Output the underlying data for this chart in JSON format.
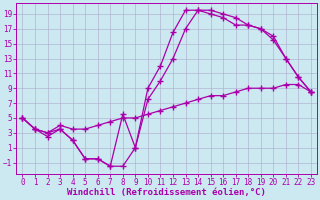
{
  "bg_color": "#cce8f0",
  "grid_color": "#aaaacc",
  "line_color": "#aa00aa",
  "marker": "+",
  "markersize": 4,
  "linewidth": 0.9,
  "xlabel": "Windchill (Refroidissement éolien,°C)",
  "xlabel_fontsize": 6.5,
  "tick_fontsize": 5.5,
  "xlim": [
    -0.5,
    23.5
  ],
  "ylim": [
    -2.5,
    20.5
  ],
  "yticks": [
    -1,
    1,
    3,
    5,
    7,
    9,
    11,
    13,
    15,
    17,
    19
  ],
  "xticks": [
    0,
    1,
    2,
    3,
    4,
    5,
    6,
    7,
    8,
    9,
    10,
    11,
    12,
    13,
    14,
    15,
    16,
    17,
    18,
    19,
    20,
    21,
    22,
    23
  ],
  "line1_x": [
    0,
    1,
    2,
    3,
    4,
    5,
    6,
    7,
    8,
    9,
    10,
    11,
    12,
    13,
    14,
    15,
    16,
    17,
    18,
    19,
    20,
    21,
    22,
    23
  ],
  "line1_y": [
    5,
    3.5,
    2.5,
    3.5,
    2,
    -0.5,
    -0.5,
    -1.5,
    5.5,
    1,
    9,
    12,
    16.5,
    19.5,
    19.5,
    19,
    18.5,
    17.5,
    17.5,
    17,
    16,
    13,
    10.5,
    8.5
  ],
  "line2_x": [
    0,
    1,
    2,
    3,
    4,
    5,
    6,
    7,
    8,
    9,
    10,
    11,
    12,
    13,
    14,
    15,
    16,
    17,
    18,
    19,
    20,
    21,
    22,
    23
  ],
  "line2_y": [
    5,
    3.5,
    3,
    3.5,
    2,
    -0.5,
    -0.5,
    -1.5,
    -1.5,
    1,
    7.5,
    10,
    13,
    17,
    19.5,
    19.5,
    19,
    18.5,
    17.5,
    17,
    15.5,
    13,
    10.5,
    8.5
  ],
  "line3_x": [
    0,
    1,
    2,
    3,
    4,
    5,
    6,
    7,
    8,
    9,
    10,
    11,
    12,
    13,
    14,
    15,
    16,
    17,
    18,
    19,
    20,
    21,
    22,
    23
  ],
  "line3_y": [
    5,
    3.5,
    3,
    4,
    3.5,
    3.5,
    4,
    4.5,
    5,
    5,
    5.5,
    6,
    6.5,
    7,
    7.5,
    8,
    8,
    8.5,
    9,
    9,
    9,
    9.5,
    9.5,
    8.5
  ]
}
